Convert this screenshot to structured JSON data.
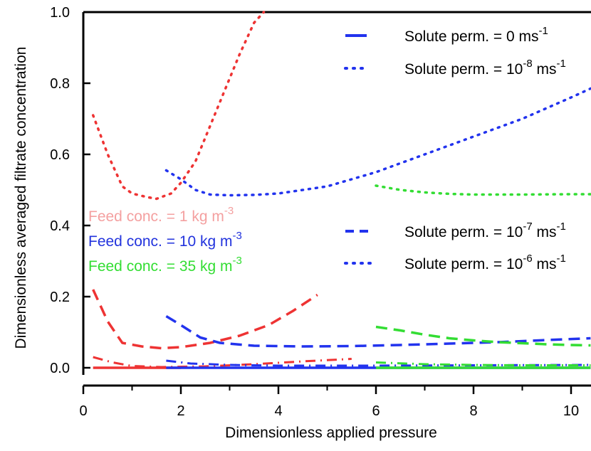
{
  "chart_data": {
    "type": "line",
    "xlabel": "Dimensionless applied pressure",
    "ylabel": "Dimensionless averaged filtrate concentration",
    "xlim": [
      0,
      10.4
    ],
    "ylim": [
      0,
      1.0
    ],
    "xticks": [
      "0",
      "2",
      "4",
      "6",
      "8",
      "10"
    ],
    "yticks": [
      "0.0",
      "0.2",
      "0.4",
      "0.6",
      "0.8",
      "1.0"
    ],
    "xtick_values": [
      0,
      2,
      4,
      6,
      8,
      10
    ],
    "ytick_values": [
      0,
      0.2,
      0.4,
      0.6,
      0.8,
      1.0
    ],
    "legend_placement": "top-right and middle-right",
    "legend": [
      {
        "text": "Solute perm. = 0 ms",
        "sup": "-1",
        "style": "solid"
      },
      {
        "text": "Solute perm. = 10",
        "sup": "-8",
        "text2": " ms",
        "sup2": "-1",
        "style": "dotted"
      },
      {
        "text": "Solute perm. = 10",
        "sup": "-7",
        "text2": " ms",
        "sup2": "-1",
        "style": "dashed"
      },
      {
        "text": "Solute perm. = 10",
        "sup": "-6",
        "text2": " ms",
        "sup2": "-1",
        "style": "dashdot"
      }
    ],
    "feed_labels": [
      {
        "text": "Feed conc. = 1 kg m",
        "sup": "-3",
        "color": "#f4a0a0"
      },
      {
        "text": "Feed conc. = 10 kg m",
        "sup": "-3",
        "color": "#2233dd"
      },
      {
        "text": "Feed conc. = 35 kg m",
        "sup": "-3",
        "color": "#33dd33"
      }
    ],
    "colors": {
      "feed_1": "#ee3333",
      "feed_10": "#2233ee",
      "feed_35": "#33dd33"
    },
    "series": [
      {
        "feed": "1",
        "perm": "0",
        "color": "#ee3333",
        "style": "solid",
        "x": [
          0.2,
          1.0,
          2.0
        ],
        "y": [
          0.0,
          0.0,
          0.0
        ]
      },
      {
        "feed": "1",
        "perm": "1e-8",
        "color": "#ee3333",
        "style": "dotted",
        "x": [
          0.2,
          0.5,
          0.8,
          1.0,
          1.3,
          1.5,
          1.8,
          2.0,
          2.3,
          2.6,
          2.9,
          3.2,
          3.5,
          3.7
        ],
        "y": [
          0.71,
          0.6,
          0.51,
          0.49,
          0.48,
          0.475,
          0.49,
          0.52,
          0.58,
          0.68,
          0.78,
          0.88,
          0.97,
          1.0
        ]
      },
      {
        "feed": "1",
        "perm": "1e-7",
        "color": "#ee3333",
        "style": "dashed",
        "x": [
          0.2,
          0.5,
          0.8,
          1.2,
          1.6,
          2.0,
          2.6,
          3.2,
          3.8,
          4.3,
          4.8
        ],
        "y": [
          0.22,
          0.13,
          0.07,
          0.06,
          0.055,
          0.058,
          0.07,
          0.09,
          0.12,
          0.16,
          0.205
        ]
      },
      {
        "feed": "1",
        "perm": "1e-6",
        "color": "#ee3333",
        "style": "dashdot",
        "x": [
          0.2,
          0.6,
          1.0,
          1.6,
          2.5,
          3.5,
          4.5,
          5.5
        ],
        "y": [
          0.03,
          0.015,
          0.005,
          0.002,
          0.004,
          0.01,
          0.018,
          0.025
        ]
      },
      {
        "feed": "10",
        "perm": "0",
        "color": "#2233ee",
        "style": "solid",
        "x": [
          1.7,
          4.0,
          7.0,
          10.4
        ],
        "y": [
          0.0,
          0.0,
          0.0,
          0.0
        ]
      },
      {
        "feed": "10",
        "perm": "1e-8",
        "color": "#2233ee",
        "style": "dotted",
        "x": [
          1.7,
          2.0,
          2.3,
          2.6,
          3.0,
          3.5,
          4.0,
          5.0,
          6.0,
          7.0,
          8.0,
          9.0,
          10.0,
          10.4
        ],
        "y": [
          0.555,
          0.53,
          0.5,
          0.487,
          0.485,
          0.486,
          0.49,
          0.51,
          0.55,
          0.6,
          0.65,
          0.7,
          0.76,
          0.785
        ]
      },
      {
        "feed": "10",
        "perm": "1e-7",
        "color": "#2233ee",
        "style": "dashed",
        "x": [
          1.7,
          2.0,
          2.4,
          2.8,
          3.5,
          4.5,
          5.5,
          6.5,
          7.5,
          8.5,
          9.5,
          10.4
        ],
        "y": [
          0.145,
          0.12,
          0.085,
          0.07,
          0.062,
          0.06,
          0.061,
          0.064,
          0.068,
          0.072,
          0.078,
          0.083
        ]
      },
      {
        "feed": "10",
        "perm": "1e-6",
        "color": "#2233ee",
        "style": "dashdot",
        "x": [
          1.7,
          2.2,
          3.0,
          4.0,
          6.0,
          8.0,
          10.4
        ],
        "y": [
          0.02,
          0.012,
          0.008,
          0.006,
          0.006,
          0.007,
          0.008
        ]
      },
      {
        "feed": "35",
        "perm": "0",
        "color": "#33dd33",
        "style": "solid",
        "x": [
          6.0,
          8.0,
          10.4
        ],
        "y": [
          0.0,
          0.0,
          0.0
        ]
      },
      {
        "feed": "35",
        "perm": "1e-8",
        "color": "#33dd33",
        "style": "dotted",
        "x": [
          6.0,
          6.5,
          7.0,
          7.5,
          8.0,
          9.0,
          10.0,
          10.4
        ],
        "y": [
          0.512,
          0.5,
          0.493,
          0.489,
          0.487,
          0.487,
          0.488,
          0.488
        ]
      },
      {
        "feed": "35",
        "perm": "1e-7",
        "color": "#33dd33",
        "style": "dashed",
        "x": [
          6.0,
          6.5,
          7.0,
          7.5,
          8.0,
          8.5,
          9.0,
          9.5,
          10.0,
          10.4
        ],
        "y": [
          0.115,
          0.105,
          0.093,
          0.083,
          0.077,
          0.072,
          0.069,
          0.066,
          0.064,
          0.063
        ]
      },
      {
        "feed": "35",
        "perm": "1e-6",
        "color": "#33dd33",
        "style": "dashdot",
        "x": [
          6.0,
          7.0,
          8.0,
          9.0,
          10.4
        ],
        "y": [
          0.015,
          0.01,
          0.008,
          0.007,
          0.007
        ]
      }
    ]
  }
}
